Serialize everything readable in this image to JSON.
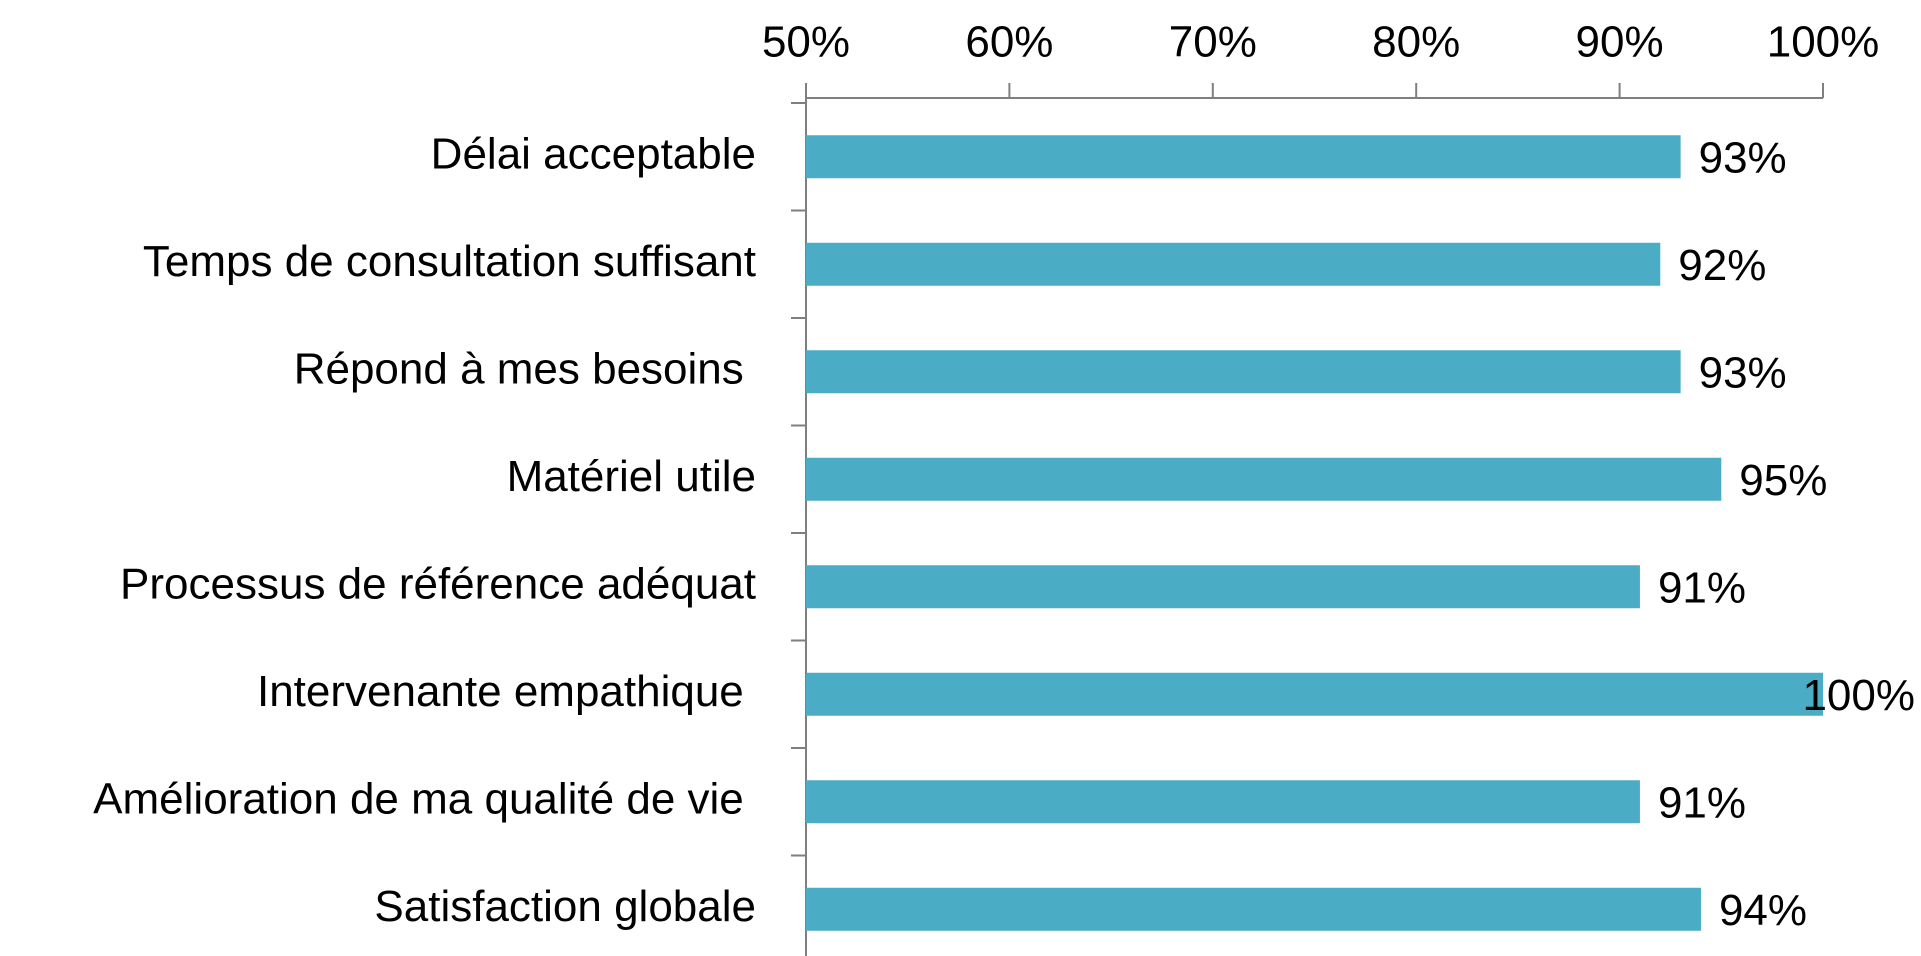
{
  "chart_data": {
    "type": "bar",
    "orientation": "horizontal",
    "title": "",
    "xlabel": "",
    "ylabel": "",
    "xlim": [
      0.5,
      1.0
    ],
    "x_axis_position": "top",
    "x_ticks": [
      {
        "value": 0.5,
        "label": "50%"
      },
      {
        "value": 0.6,
        "label": "60%"
      },
      {
        "value": 0.7,
        "label": "70%"
      },
      {
        "value": 0.8,
        "label": "80%"
      },
      {
        "value": 0.9,
        "label": "90%"
      },
      {
        "value": 1.0,
        "label": "100%"
      }
    ],
    "categories": [
      "Délai acceptable",
      "Temps de consultation suffisant",
      "Répond à mes besoins ",
      "Matériel utile",
      "Processus de référence adéquat",
      "Intervenante empathique ",
      "Amélioration de ma qualité de vie ",
      "Satisfaction globale"
    ],
    "values": [
      0.93,
      0.92,
      0.93,
      0.95,
      0.91,
      1.0,
      0.91,
      0.94
    ],
    "data_labels": [
      "93%",
      "92%",
      "93%",
      "95%",
      "91%",
      "100%",
      "91%",
      "94%"
    ],
    "bar_color": "#4BACC6",
    "axis_color": "#7F7F7F",
    "grid": false,
    "legend": "none"
  }
}
